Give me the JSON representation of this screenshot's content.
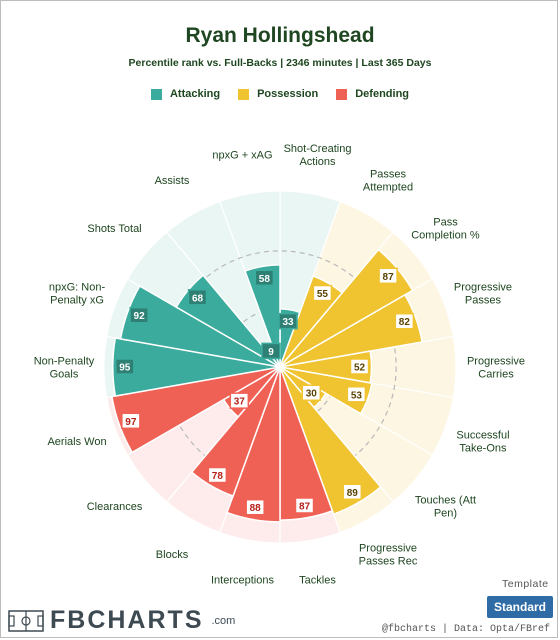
{
  "header": {
    "title": "Ryan Hollingshead",
    "subtitle": "Percentile rank vs. Full-Backs | 2346 minutes | Last 365 Days"
  },
  "legend": [
    {
      "label": "Attacking",
      "color": "#3aab9c"
    },
    {
      "label": "Possession",
      "color": "#f0c330"
    },
    {
      "label": "Defending",
      "color": "#f06155"
    }
  ],
  "footer": {
    "template_label": "Template",
    "template_button": "Standard",
    "logo_text": "FBCHARTS",
    "logo_suffix": ".com",
    "credit": "@fbcharts | Data: Opta/FBref"
  },
  "chart_data": {
    "type": "radar-bar",
    "title": "Ryan Hollingshead",
    "range": [
      0,
      100
    ],
    "groups": {
      "Attacking": {
        "color": "#3aab9c",
        "bg": "#e9f6f3"
      },
      "Possession": {
        "color": "#f0c330",
        "bg": "#fdf6e2"
      },
      "Defending": {
        "color": "#f06155",
        "bg": "#fdeceb"
      }
    },
    "categories": [
      {
        "label": [
          "Shot-Creating",
          "Actions"
        ],
        "value": 33,
        "group": "Attacking"
      },
      {
        "label": [
          "Passes",
          "Attempted"
        ],
        "value": 55,
        "group": "Possession"
      },
      {
        "label": [
          "Pass",
          "Completion %"
        ],
        "value": 87,
        "group": "Possession"
      },
      {
        "label": [
          "Progressive",
          "Passes"
        ],
        "value": 82,
        "group": "Possession"
      },
      {
        "label": [
          "Progressive",
          "Carries"
        ],
        "value": 52,
        "group": "Possession"
      },
      {
        "label": [
          "Successful",
          "Take-Ons"
        ],
        "value": 53,
        "group": "Possession"
      },
      {
        "label": [
          "Touches (Att",
          "Pen)"
        ],
        "value": 30,
        "group": "Possession"
      },
      {
        "label": [
          "Progressive",
          "Passes Rec"
        ],
        "value": 89,
        "group": "Possession"
      },
      {
        "label": [
          "Tackles"
        ],
        "value": 87,
        "group": "Defending"
      },
      {
        "label": [
          "Interceptions"
        ],
        "value": 88,
        "group": "Defending"
      },
      {
        "label": [
          "Blocks"
        ],
        "value": 78,
        "group": "Defending"
      },
      {
        "label": [
          "Clearances"
        ],
        "value": 37,
        "group": "Defending"
      },
      {
        "label": [
          "Aerials Won"
        ],
        "value": 97,
        "group": "Defending"
      },
      {
        "label": [
          "Non-Penalty",
          "Goals"
        ],
        "value": 95,
        "group": "Attacking"
      },
      {
        "label": [
          "npxG: Non-",
          "Penalty xG"
        ],
        "value": 92,
        "group": "Attacking"
      },
      {
        "label": [
          "Shots Total"
        ],
        "value": 68,
        "group": "Attacking"
      },
      {
        "label": [
          "Assists"
        ],
        "value": 9,
        "group": "Attacking"
      },
      {
        "label": [
          "npxG + xAG"
        ],
        "value": 58,
        "group": "Attacking"
      }
    ]
  }
}
